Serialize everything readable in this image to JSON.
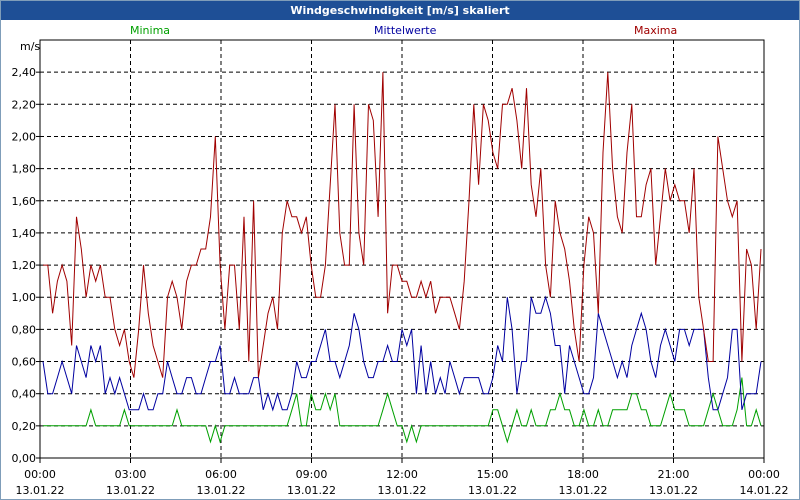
{
  "title": "Windgeschwindigkeit [m/s] skaliert",
  "colors": {
    "minima": "#00a000",
    "mittelwerte": "#0000a0",
    "maxima": "#a00000"
  },
  "chart_data": {
    "type": "line",
    "title": "Windgeschwindigkeit [m/s] skaliert",
    "ylabel": "m/s",
    "ylim": [
      0,
      2.6
    ],
    "xlim": [
      0,
      24
    ],
    "yticks": [
      "0,00",
      "0,20",
      "0,40",
      "0,60",
      "0,80",
      "1,00",
      "1,20",
      "1,40",
      "1,60",
      "1,80",
      "2,00",
      "2,20",
      "2,40"
    ],
    "xticks": [
      {
        "time": "00:00",
        "date": "13.01.22"
      },
      {
        "time": "03:00",
        "date": "13.01.22"
      },
      {
        "time": "06:00",
        "date": "13.01.22"
      },
      {
        "time": "09:00",
        "date": "13.01.22"
      },
      {
        "time": "12:00",
        "date": "13.01.22"
      },
      {
        "time": "15:00",
        "date": "13.01.22"
      },
      {
        "time": "18:00",
        "date": "13.01.22"
      },
      {
        "time": "21:00",
        "date": "13.01.22"
      },
      {
        "time": "00:00",
        "date": "14.01.22"
      }
    ],
    "series": [
      {
        "name": "Minima",
        "values": [
          0.2,
          0.2,
          0.2,
          0.2,
          0.2,
          0.2,
          0.2,
          0.2,
          0.2,
          0.2,
          0.3,
          0.2,
          0.2,
          0.2,
          0.2,
          0.2,
          0.2,
          0.3,
          0.2,
          0.2,
          0.2,
          0.2,
          0.2,
          0.2,
          0.2,
          0.2,
          0.2,
          0.2,
          0.3,
          0.2,
          0.2,
          0.2,
          0.2,
          0.2,
          0.2,
          0.1,
          0.2,
          0.1,
          0.2,
          0.2,
          0.2,
          0.2,
          0.2,
          0.2,
          0.2,
          0.2,
          0.2,
          0.2,
          0.2,
          0.2,
          0.2,
          0.2,
          0.3,
          0.4,
          0.2,
          0.2,
          0.4,
          0.3,
          0.3,
          0.4,
          0.3,
          0.4,
          0.2,
          0.2,
          0.2,
          0.2,
          0.2,
          0.2,
          0.2,
          0.2,
          0.2,
          0.3,
          0.4,
          0.3,
          0.2,
          0.2,
          0.1,
          0.2,
          0.1,
          0.2,
          0.2,
          0.2,
          0.2,
          0.2,
          0.2,
          0.2,
          0.2,
          0.2,
          0.2,
          0.2,
          0.2,
          0.2,
          0.2,
          0.2,
          0.3,
          0.3,
          0.2,
          0.1,
          0.2,
          0.3,
          0.2,
          0.2,
          0.3,
          0.2,
          0.2,
          0.2,
          0.3,
          0.3,
          0.4,
          0.3,
          0.3,
          0.2,
          0.2,
          0.3,
          0.2,
          0.2,
          0.3,
          0.2,
          0.2,
          0.3,
          0.3,
          0.3,
          0.3,
          0.4,
          0.4,
          0.3,
          0.3,
          0.2,
          0.2,
          0.2,
          0.3,
          0.4,
          0.3,
          0.3,
          0.3,
          0.2,
          0.2,
          0.2,
          0.2,
          0.3,
          0.4,
          0.3,
          0.2,
          0.2,
          0.2,
          0.3,
          0.5,
          0.2,
          0.2,
          0.3,
          0.2
        ]
      },
      {
        "name": "Mittelwerte",
        "values": [
          0.6,
          0.4,
          0.4,
          0.5,
          0.6,
          0.5,
          0.4,
          0.7,
          0.6,
          0.5,
          0.7,
          0.6,
          0.7,
          0.4,
          0.5,
          0.4,
          0.5,
          0.4,
          0.3,
          0.3,
          0.3,
          0.4,
          0.3,
          0.3,
          0.4,
          0.4,
          0.6,
          0.5,
          0.4,
          0.4,
          0.5,
          0.5,
          0.4,
          0.4,
          0.5,
          0.6,
          0.6,
          0.7,
          0.4,
          0.4,
          0.5,
          0.4,
          0.4,
          0.4,
          0.5,
          0.5,
          0.3,
          0.4,
          0.3,
          0.4,
          0.3,
          0.3,
          0.4,
          0.6,
          0.5,
          0.5,
          0.6,
          0.6,
          0.7,
          0.8,
          0.6,
          0.6,
          0.5,
          0.6,
          0.7,
          0.9,
          0.8,
          0.6,
          0.5,
          0.5,
          0.6,
          0.6,
          0.7,
          0.6,
          0.6,
          0.8,
          0.7,
          0.8,
          0.4,
          0.7,
          0.4,
          0.6,
          0.4,
          0.5,
          0.4,
          0.6,
          0.5,
          0.4,
          0.5,
          0.5,
          0.5,
          0.5,
          0.4,
          0.4,
          0.5,
          0.7,
          0.6,
          1.0,
          0.8,
          0.4,
          0.6,
          0.6,
          1.0,
          0.9,
          0.9,
          1.0,
          0.9,
          0.7,
          0.7,
          0.4,
          0.7,
          0.6,
          0.5,
          0.4,
          0.4,
          0.5,
          0.9,
          0.8,
          0.7,
          0.6,
          0.5,
          0.6,
          0.5,
          0.7,
          0.8,
          0.9,
          0.8,
          0.6,
          0.5,
          0.7,
          0.8,
          0.7,
          0.6,
          0.8,
          0.8,
          0.7,
          0.8,
          0.8,
          0.8,
          0.5,
          0.3,
          0.3,
          0.4,
          0.5,
          0.8,
          0.8,
          0.3,
          0.4,
          0.4,
          0.4,
          0.6
        ]
      },
      {
        "name": "Maxima",
        "values": [
          1.2,
          1.2,
          0.9,
          1.1,
          1.2,
          1.1,
          0.7,
          1.5,
          1.3,
          1.0,
          1.2,
          1.1,
          1.2,
          1.0,
          1.0,
          0.8,
          0.7,
          0.8,
          0.6,
          0.5,
          0.8,
          1.2,
          0.9,
          0.7,
          0.6,
          0.5,
          1.0,
          1.1,
          1.0,
          0.8,
          1.1,
          1.2,
          1.2,
          1.3,
          1.3,
          1.5,
          2.0,
          1.2,
          0.8,
          1.2,
          1.2,
          0.8,
          1.5,
          0.6,
          1.6,
          0.5,
          0.7,
          0.9,
          1.0,
          0.8,
          1.4,
          1.6,
          1.5,
          1.5,
          1.4,
          1.5,
          1.2,
          1.0,
          1.0,
          1.2,
          1.7,
          2.2,
          1.4,
          1.2,
          1.2,
          2.2,
          1.4,
          1.2,
          2.2,
          2.1,
          1.5,
          2.4,
          0.9,
          1.2,
          1.2,
          1.1,
          1.1,
          1.0,
          1.0,
          1.1,
          1.0,
          1.1,
          0.9,
          1.0,
          1.0,
          1.0,
          0.9,
          0.8,
          1.1,
          1.6,
          2.2,
          1.7,
          2.2,
          2.1,
          1.9,
          1.8,
          2.2,
          2.2,
          2.3,
          2.1,
          1.8,
          2.3,
          1.7,
          1.5,
          1.8,
          1.2,
          1.0,
          1.6,
          1.4,
          1.3,
          1.1,
          0.8,
          0.6,
          1.2,
          1.5,
          1.4,
          0.9,
          1.9,
          2.4,
          1.8,
          1.5,
          1.4,
          1.9,
          2.2,
          1.5,
          1.5,
          1.7,
          1.8,
          1.2,
          1.5,
          1.8,
          1.6,
          1.7,
          1.6,
          1.6,
          1.4,
          1.8,
          1.0,
          0.8,
          0.6,
          0.6,
          2.0,
          1.8,
          1.6,
          1.5,
          1.6,
          0.6,
          1.3,
          1.2,
          0.8,
          1.3
        ]
      }
    ]
  }
}
